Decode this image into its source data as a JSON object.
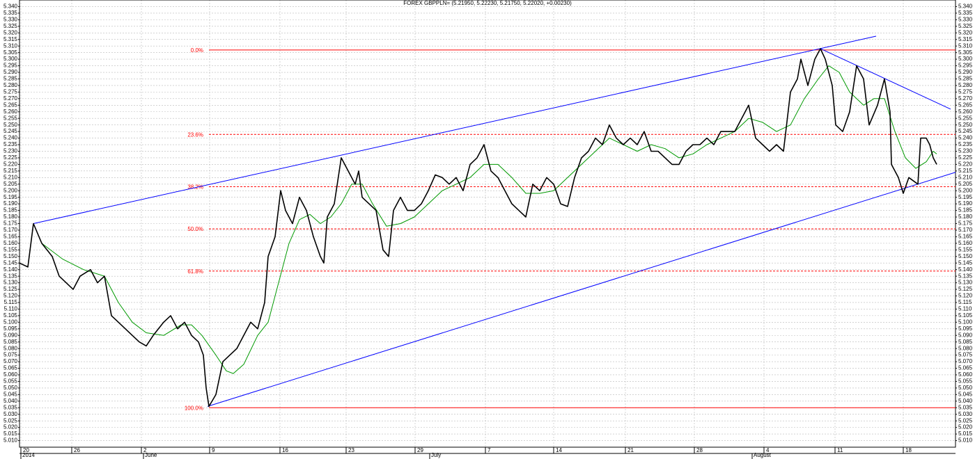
{
  "chart_data": {
    "type": "line",
    "title": "FOREX GBPPLN= (5.21950, 5.22230, 5.21750, 5.22020, +0.00230)",
    "xlim": [
      0,
      1344
    ],
    "ylim": [
      5.005,
      5.345
    ],
    "grid": true,
    "xticks": [
      {
        "value": 2,
        "label": "20"
      },
      {
        "value": 75,
        "label": "26"
      },
      {
        "value": 175,
        "label": "2"
      },
      {
        "value": 273,
        "label": "9"
      },
      {
        "value": 374,
        "label": "16"
      },
      {
        "value": 469,
        "label": "23"
      },
      {
        "value": 568,
        "label": "29"
      },
      {
        "value": 669,
        "label": "7"
      },
      {
        "value": 767,
        "label": "14"
      },
      {
        "value": 870,
        "label": "21"
      },
      {
        "value": 969,
        "label": "28"
      },
      {
        "value": 1069,
        "label": "4"
      },
      {
        "value": 1171,
        "label": "11"
      },
      {
        "value": 1269,
        "label": "18"
      }
    ],
    "month_labels": [
      {
        "value": 2,
        "label": "2014"
      },
      {
        "value": 178,
        "label": "June"
      },
      {
        "value": 589,
        "label": "July"
      },
      {
        "value": 1052,
        "label": "August"
      }
    ],
    "yticks": [
      {
        "value": 5.01,
        "label": "5.010"
      },
      {
        "value": 5.015,
        "label": "5.015"
      },
      {
        "value": 5.02,
        "label": "5.020"
      },
      {
        "value": 5.025,
        "label": "5.025"
      },
      {
        "value": 5.03,
        "label": "5.030"
      },
      {
        "value": 5.035,
        "label": "5.035"
      },
      {
        "value": 5.04,
        "label": "5.040"
      },
      {
        "value": 5.045,
        "label": "5.045"
      },
      {
        "value": 5.05,
        "label": "5.050"
      },
      {
        "value": 5.055,
        "label": "5.055"
      },
      {
        "value": 5.06,
        "label": "5.060"
      },
      {
        "value": 5.065,
        "label": "5.065"
      },
      {
        "value": 5.07,
        "label": "5.070"
      },
      {
        "value": 5.075,
        "label": "5.075"
      },
      {
        "value": 5.08,
        "label": "5.080"
      },
      {
        "value": 5.085,
        "label": "5.085"
      },
      {
        "value": 5.09,
        "label": "5.090"
      },
      {
        "value": 5.095,
        "label": "5.095"
      },
      {
        "value": 5.1,
        "label": "5.100"
      },
      {
        "value": 5.105,
        "label": "5.105"
      },
      {
        "value": 5.11,
        "label": "5.110"
      },
      {
        "value": 5.115,
        "label": "5.115"
      },
      {
        "value": 5.12,
        "label": "5.120"
      },
      {
        "value": 5.125,
        "label": "5.125"
      },
      {
        "value": 5.13,
        "label": "5.130"
      },
      {
        "value": 5.135,
        "label": "5.135"
      },
      {
        "value": 5.14,
        "label": "5.140"
      },
      {
        "value": 5.145,
        "label": "5.145"
      },
      {
        "value": 5.15,
        "label": "5.150"
      },
      {
        "value": 5.155,
        "label": "5.155"
      },
      {
        "value": 5.16,
        "label": "5.160"
      },
      {
        "value": 5.165,
        "label": "5.165"
      },
      {
        "value": 5.17,
        "label": "5.170"
      },
      {
        "value": 5.175,
        "label": "5.175"
      },
      {
        "value": 5.18,
        "label": "5.180"
      },
      {
        "value": 5.185,
        "label": "5.185"
      },
      {
        "value": 5.19,
        "label": "5.190"
      },
      {
        "value": 5.195,
        "label": "5.195"
      },
      {
        "value": 5.2,
        "label": "5.200"
      },
      {
        "value": 5.205,
        "label": "5.205"
      },
      {
        "value": 5.21,
        "label": "5.210"
      },
      {
        "value": 5.215,
        "label": "5.215"
      },
      {
        "value": 5.22,
        "label": "5.220"
      },
      {
        "value": 5.225,
        "label": "5.225"
      },
      {
        "value": 5.23,
        "label": "5.230"
      },
      {
        "value": 5.235,
        "label": "5.235"
      },
      {
        "value": 5.24,
        "label": "5.240"
      },
      {
        "value": 5.245,
        "label": "5.245"
      },
      {
        "value": 5.25,
        "label": "5.250"
      },
      {
        "value": 5.255,
        "label": "5.255"
      },
      {
        "value": 5.26,
        "label": "5.260"
      },
      {
        "value": 5.265,
        "label": "5.265"
      },
      {
        "value": 5.27,
        "label": "5.270"
      },
      {
        "value": 5.275,
        "label": "5.275"
      },
      {
        "value": 5.28,
        "label": "5.280"
      },
      {
        "value": 5.285,
        "label": "5.285"
      },
      {
        "value": 5.29,
        "label": "5.290"
      },
      {
        "value": 5.295,
        "label": "5.295"
      },
      {
        "value": 5.3,
        "label": "5.300"
      },
      {
        "value": 5.305,
        "label": "5.305"
      },
      {
        "value": 5.31,
        "label": "5.310"
      },
      {
        "value": 5.315,
        "label": "5.315"
      },
      {
        "value": 5.32,
        "label": "5.320"
      },
      {
        "value": 5.325,
        "label": "5.325"
      },
      {
        "value": 5.33,
        "label": "5.330"
      },
      {
        "value": 5.335,
        "label": "5.335"
      },
      {
        "value": 5.34,
        "label": "5.340"
      }
    ],
    "series": [
      {
        "color": "#000000",
        "x": [
          0,
          12,
          20,
          32,
          47,
          57,
          67,
          77,
          87,
          102,
          112,
          122,
          132,
          142,
          152,
          162,
          172,
          182,
          192,
          207,
          217,
          227,
          237,
          247,
          257,
          264,
          268,
          272,
          282,
          292,
          302,
          312,
          322,
          332,
          342,
          352,
          357,
          367,
          375,
          382,
          392,
          402,
          412,
          422,
          432,
          437,
          442,
          452,
          462,
          472,
          482,
          487,
          492,
          502,
          512,
          522,
          530,
          537,
          547,
          557,
          567,
          577,
          587,
          597,
          607,
          617,
          627,
          637,
          647,
          657,
          667,
          677,
          687,
          697,
          707,
          717,
          727,
          737,
          747,
          757,
          767,
          777,
          787,
          797,
          807,
          817,
          827,
          837,
          847,
          857,
          867,
          877,
          887,
          897,
          907,
          917,
          927,
          937,
          947,
          957,
          967,
          977,
          987,
          997,
          1007,
          1017,
          1027,
          1037,
          1047,
          1057,
          1067,
          1077,
          1087,
          1097,
          1107,
          1117,
          1122,
          1132,
          1142,
          1150,
          1157,
          1167,
          1172,
          1182,
          1192,
          1202,
          1212,
          1220,
          1232,
          1242,
          1250,
          1252,
          1262,
          1269,
          1277,
          1290,
          1294,
          1302,
          1307,
          1312,
          1317
        ],
        "values": [
          5.145,
          5.142,
          5.175,
          5.16,
          5.15,
          5.135,
          5.13,
          5.125,
          5.135,
          5.14,
          5.13,
          5.135,
          5.105,
          5.1,
          5.095,
          5.09,
          5.085,
          5.082,
          5.09,
          5.1,
          5.105,
          5.095,
          5.1,
          5.09,
          5.085,
          5.075,
          5.05,
          5.036,
          5.045,
          5.07,
          5.075,
          5.08,
          5.09,
          5.1,
          5.095,
          5.115,
          5.15,
          5.165,
          5.2,
          5.185,
          5.175,
          5.195,
          5.185,
          5.165,
          5.15,
          5.145,
          5.18,
          5.19,
          5.225,
          5.215,
          5.205,
          5.215,
          5.195,
          5.19,
          5.185,
          5.155,
          5.15,
          5.185,
          5.195,
          5.185,
          5.185,
          5.19,
          5.2,
          5.212,
          5.21,
          5.205,
          5.21,
          5.2,
          5.22,
          5.225,
          5.235,
          5.215,
          5.21,
          5.2,
          5.19,
          5.185,
          5.18,
          5.205,
          5.2,
          5.21,
          5.205,
          5.19,
          5.188,
          5.21,
          5.225,
          5.23,
          5.24,
          5.235,
          5.25,
          5.24,
          5.235,
          5.24,
          5.235,
          5.245,
          5.23,
          5.23,
          5.225,
          5.22,
          5.22,
          5.23,
          5.235,
          5.235,
          5.24,
          5.235,
          5.245,
          5.245,
          5.245,
          5.255,
          5.265,
          5.24,
          5.235,
          5.23,
          5.235,
          5.23,
          5.275,
          5.285,
          5.3,
          5.28,
          5.3,
          5.308,
          5.3,
          5.28,
          5.25,
          5.245,
          5.26,
          5.295,
          5.285,
          5.25,
          5.265,
          5.285,
          5.26,
          5.22,
          5.21,
          5.198,
          5.21,
          5.205,
          5.24,
          5.24,
          5.235,
          5.225,
          5.22
        ]
      },
      {
        "color": "#009900",
        "x": [
          32,
          62,
          92,
          122,
          142,
          162,
          182,
          207,
          232,
          247,
          262,
          282,
          297,
          307,
          322,
          342,
          357,
          372,
          387,
          402,
          417,
          432,
          447,
          462,
          477,
          492,
          507,
          527,
          547,
          567,
          587,
          607,
          627,
          647,
          667,
          687,
          707,
          727,
          747,
          767,
          787,
          807,
          827,
          847,
          867,
          887,
          907,
          927,
          947,
          967,
          987,
          1007,
          1027,
          1047,
          1067,
          1087,
          1107,
          1127,
          1147,
          1162,
          1177,
          1192,
          1212,
          1227,
          1242,
          1257,
          1272,
          1287,
          1302,
          1312,
          1317
        ],
        "values": [
          5.16,
          5.148,
          5.14,
          5.135,
          5.115,
          5.1,
          5.092,
          5.09,
          5.098,
          5.098,
          5.09,
          5.075,
          5.063,
          5.061,
          5.068,
          5.09,
          5.1,
          5.13,
          5.16,
          5.178,
          5.182,
          5.175,
          5.18,
          5.19,
          5.205,
          5.205,
          5.19,
          5.173,
          5.175,
          5.18,
          5.19,
          5.2,
          5.205,
          5.21,
          5.22,
          5.22,
          5.21,
          5.198,
          5.198,
          5.2,
          5.21,
          5.22,
          5.23,
          5.24,
          5.235,
          5.23,
          5.235,
          5.232,
          5.225,
          5.228,
          5.235,
          5.24,
          5.245,
          5.255,
          5.252,
          5.245,
          5.25,
          5.27,
          5.285,
          5.295,
          5.29,
          5.275,
          5.265,
          5.27,
          5.27,
          5.245,
          5.225,
          5.217,
          5.222,
          5.23,
          5.228
        ]
      }
    ],
    "trendlines": {
      "color": "#0000ff",
      "lines": [
        {
          "x": [
            20,
            1230
          ],
          "y": [
            5.175,
            5.3175
          ]
        },
        {
          "x": [
            270,
            1344
          ],
          "y": [
            5.036,
            5.214
          ]
        },
        {
          "x": [
            1150,
            1337
          ],
          "y": [
            5.308,
            5.262
          ]
        }
      ]
    },
    "fibonacci": {
      "color": "#ff0000",
      "x_start": 272,
      "levels": [
        {
          "label": "0.0%",
          "value": 5.307,
          "dashed": false
        },
        {
          "label": "23.6%",
          "value": 5.2428,
          "dashed": true
        },
        {
          "label": "38.2%",
          "value": 5.2031,
          "dashed": true
        },
        {
          "label": "50.0%",
          "value": 5.171,
          "dashed": true
        },
        {
          "label": "61.8%",
          "value": 5.1389,
          "dashed": true
        },
        {
          "label": "100.0%",
          "value": 5.035,
          "dashed": false
        }
      ]
    }
  }
}
